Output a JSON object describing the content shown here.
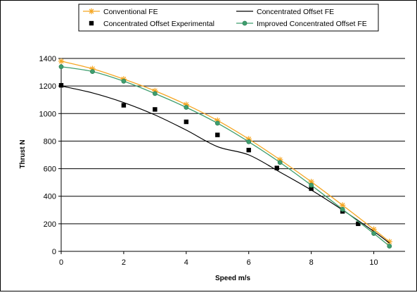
{
  "chart_data": {
    "type": "line",
    "title": "",
    "xlabel": "Speed m/s",
    "ylabel": "Thrust N",
    "xlim": [
      0,
      11
    ],
    "ylim": [
      0,
      1400
    ],
    "x_ticks": [
      0,
      2,
      4,
      6,
      8,
      10
    ],
    "y_ticks": [
      0,
      200,
      400,
      600,
      800,
      1000,
      1200,
      1400
    ],
    "grid": "horizontal",
    "legend_position": "top",
    "series": [
      {
        "name": "Conventional FE",
        "style": "line-star",
        "color": "#F5A623",
        "x": [
          0,
          1,
          2,
          3,
          4,
          5,
          6,
          7,
          8,
          9,
          10,
          10.5
        ],
        "y": [
          1380,
          1325,
          1250,
          1165,
          1065,
          950,
          815,
          665,
          505,
          335,
          160,
          70
        ]
      },
      {
        "name": "Concentrated Offset FE",
        "style": "line",
        "color": "#000000",
        "x": [
          0,
          1,
          2,
          3,
          4,
          5,
          6,
          7,
          8,
          9,
          10,
          10.5
        ],
        "y": [
          1200,
          1150,
          1080,
          990,
          880,
          760,
          700,
          575,
          445,
          300,
          145,
          60
        ]
      },
      {
        "name": "Concentrated Offset Experimental",
        "style": "marker-square",
        "color": "#000000",
        "x": [
          0,
          2,
          3,
          4,
          5,
          6,
          6.9,
          8,
          9,
          9.5
        ],
        "y": [
          1205,
          1060,
          1030,
          940,
          845,
          735,
          605,
          455,
          290,
          200
        ]
      },
      {
        "name": "Improved Concentrated Offset FE",
        "style": "line-circle",
        "color": "#3E9E6E",
        "x": [
          0,
          1,
          2,
          3,
          4,
          5,
          6,
          7,
          8,
          9,
          10,
          10.5
        ],
        "y": [
          1340,
          1305,
          1235,
          1145,
          1045,
          930,
          795,
          645,
          480,
          305,
          130,
          38
        ]
      }
    ]
  }
}
